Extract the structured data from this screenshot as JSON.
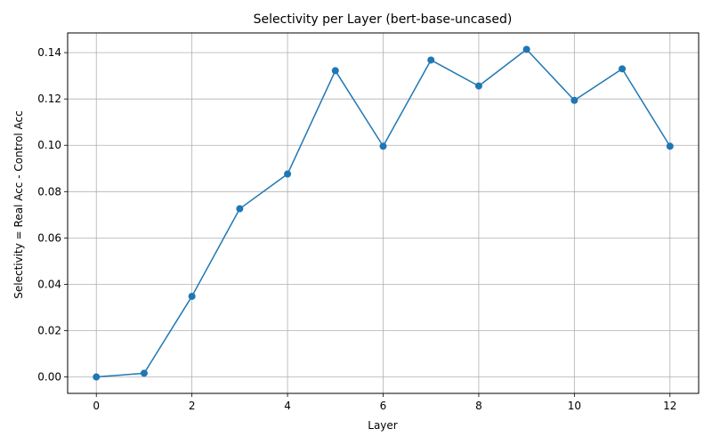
{
  "chart_data": {
    "type": "line",
    "title": "Selectivity per Layer (bert-base-uncased)",
    "xlabel": "Layer",
    "ylabel": "Selectivity = Real Acc - Control Acc",
    "x": [
      0,
      1,
      2,
      3,
      4,
      5,
      6,
      7,
      8,
      9,
      10,
      11,
      12
    ],
    "series": [
      {
        "name": "Selectivity",
        "values": [
          0.0,
          0.0016,
          0.0348,
          0.0726,
          0.0876,
          0.1322,
          0.0996,
          0.1368,
          0.1256,
          0.1414,
          0.1194,
          0.133,
          0.0996
        ]
      }
    ],
    "xlim": [
      -0.6,
      12.6
    ],
    "ylim": [
      -0.0071,
      0.1485
    ],
    "xticks": [
      0,
      2,
      4,
      6,
      8,
      10,
      12
    ],
    "xtick_labels": [
      "0",
      "2",
      "4",
      "6",
      "8",
      "10",
      "12"
    ],
    "yticks": [
      0.0,
      0.02,
      0.04,
      0.06,
      0.08,
      0.1,
      0.12,
      0.14
    ],
    "ytick_labels": [
      "0.00",
      "0.02",
      "0.04",
      "0.06",
      "0.08",
      "0.10",
      "0.12",
      "0.14"
    ],
    "grid": true,
    "color": "#1f77b4",
    "marker": "circle"
  }
}
